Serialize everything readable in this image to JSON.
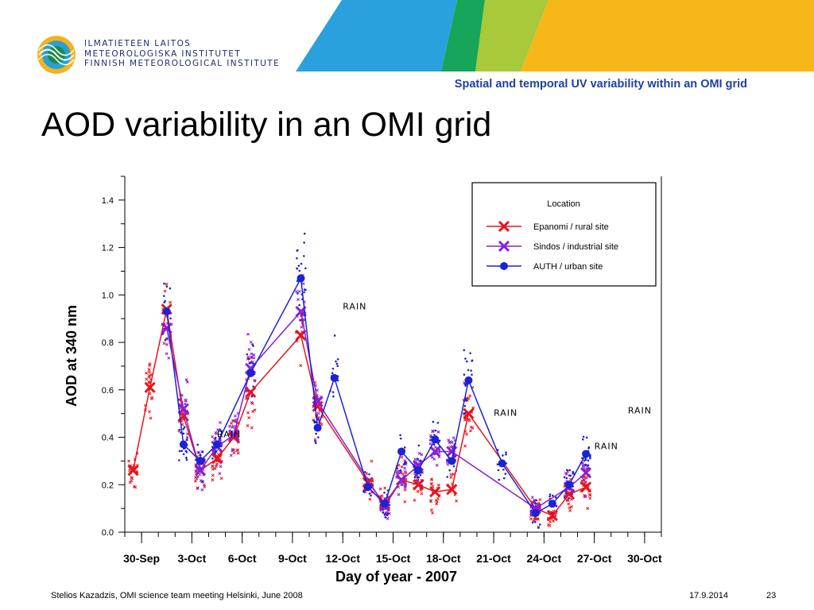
{
  "header": {
    "org_lines": [
      "ILMATIETEEN LAITOS",
      "METEOROLOGISKA INSTITUTET",
      "FINNISH METEOROLOGICAL INSTITUTE"
    ],
    "subtitle": "Spatial and temporal UV variability within an OMI grid"
  },
  "slide": {
    "title": "AOD variability in an OMI grid"
  },
  "footer": {
    "author": "Stelios Kazadzis, OMI science team meeting Helsinki, June 2008",
    "date": "17.9.2014",
    "page": "23"
  },
  "colors": {
    "epanomi": "#e8141b",
    "sindos": "#8a1fd1",
    "auth": "#1c22d6",
    "subtitle": "#1f3fa6"
  },
  "chart_data": {
    "type": "line",
    "title": "",
    "xlabel": "Day of year - 2007",
    "ylabel": "AOD at 340 nm",
    "x_ticks": [
      "30-Sep",
      "3-Oct",
      "6-Oct",
      "9-Oct",
      "12-Oct",
      "15-Oct",
      "18-Oct",
      "21-Oct",
      "24-Oct",
      "27-Oct",
      "30-Oct"
    ],
    "y_ticks": [
      "0.0",
      "0.2",
      "0.4",
      "0.6",
      "0.8",
      "1.0",
      "1.2",
      "1.4"
    ],
    "xlim": [
      "29-Sep",
      "31-Oct"
    ],
    "ylim": [
      0,
      1.5
    ],
    "legend": {
      "title": "Location",
      "position": "top-right"
    },
    "series": [
      {
        "name": "Epanomi / rural site",
        "marker": "x",
        "x": [
          "29.5-Sep",
          "30.5-Sep",
          "1.5-Oct",
          "2.5-Oct",
          "3.5-Oct",
          "4.5-Oct",
          "5.5-Oct",
          "6.5-Oct",
          "9.5-Oct",
          "10.5-Oct",
          "13.5-Oct",
          "14.5-Oct",
          "15.5-Oct",
          "16.5-Oct",
          "17.5-Oct",
          "18.5-Oct",
          "19.5-Oct",
          "23.5-Oct",
          "24.5-Oct",
          "25.5-Oct",
          "26.5-Oct"
        ],
        "values": [
          0.26,
          0.61,
          0.94,
          0.49,
          0.26,
          0.31,
          0.4,
          0.59,
          0.83,
          0.53,
          0.21,
          0.12,
          0.22,
          0.2,
          0.17,
          0.18,
          0.5,
          0.1,
          0.07,
          0.16,
          0.19
        ]
      },
      {
        "name": "Sindos / industrial site",
        "marker": "x",
        "x": [
          "1.5-Oct",
          "2.5-Oct",
          "3.5-Oct",
          "4.5-Oct",
          "5.5-Oct",
          "6.5-Oct",
          "9.5-Oct",
          "10.5-Oct",
          "14.5-Oct",
          "15.5-Oct",
          "16.5-Oct",
          "17.5-Oct",
          "18.5-Oct",
          "23.5-Oct",
          "25.5-Oct",
          "26.5-Oct"
        ],
        "values": [
          0.86,
          0.52,
          0.26,
          0.36,
          0.41,
          0.69,
          0.93,
          0.55,
          0.11,
          0.22,
          0.28,
          0.34,
          0.34,
          0.1,
          0.19,
          0.25
        ]
      },
      {
        "name": "AUTH / urban site",
        "marker": "circle",
        "x": [
          "1.5-Oct",
          "2.5-Oct",
          "3.5-Oct",
          "4.5-Oct",
          "6.5-Oct",
          "9.5-Oct",
          "10.5-Oct",
          "11.5-Oct",
          "13.5-Oct",
          "14.5-Oct",
          "15.5-Oct",
          "16.5-Oct",
          "17.5-Oct",
          "18.5-Oct",
          "19.5-Oct",
          "21.5-Oct",
          "23.5-Oct",
          "24.5-Oct",
          "25.5-Oct",
          "26.5-Oct"
        ],
        "values": [
          0.93,
          0.37,
          0.3,
          0.37,
          0.67,
          1.07,
          0.44,
          0.65,
          0.19,
          0.12,
          0.34,
          0.26,
          0.39,
          0.3,
          0.64,
          0.29,
          0.08,
          0.12,
          0.2,
          0.33
        ]
      }
    ],
    "annotations": [
      {
        "text": "RAIN",
        "x": "4.5-Oct",
        "y": 0.4
      },
      {
        "text": "RAIN",
        "x": "12-Oct",
        "y": 0.94
      },
      {
        "text": "RAIN",
        "x": "21-Oct",
        "y": 0.49
      },
      {
        "text": "RAIN",
        "x": "27-Oct",
        "y": 0.35
      },
      {
        "text": "RAIN",
        "x": "29-Oct",
        "y": 0.5
      }
    ]
  }
}
